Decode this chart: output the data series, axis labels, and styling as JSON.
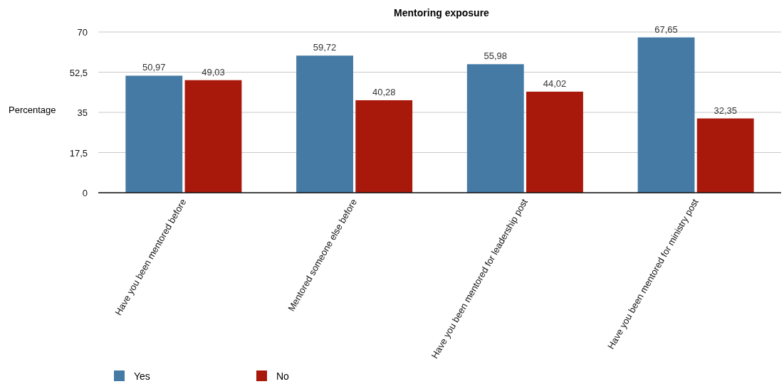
{
  "chart_data": {
    "type": "bar",
    "title": "Mentoring exposure",
    "ylabel": "Percentage",
    "categories": [
      "Have you been mentored before",
      "Mentored someone else before",
      "Have you been mentored for leadership post",
      "Have you been mentored for ministry post"
    ],
    "series": [
      {
        "name": "Yes",
        "color": "#457aa5",
        "values": [
          50.97,
          59.72,
          55.98,
          67.65
        ],
        "value_labels": [
          "50,97",
          "59,72",
          "55,98",
          "67,65"
        ]
      },
      {
        "name": "No",
        "color": "#a8190c",
        "values": [
          49.03,
          40.28,
          44.02,
          32.35
        ],
        "value_labels": [
          "49,03",
          "40,28",
          "44,02",
          "32,35"
        ]
      }
    ],
    "ylim": [
      0,
      70
    ],
    "yticks": [
      0,
      {
        "value": 17.5,
        "label": "17,5"
      },
      35,
      {
        "value": 52.5,
        "label": "52,5"
      },
      70
    ],
    "grid": "y",
    "legend": "bottom left"
  }
}
